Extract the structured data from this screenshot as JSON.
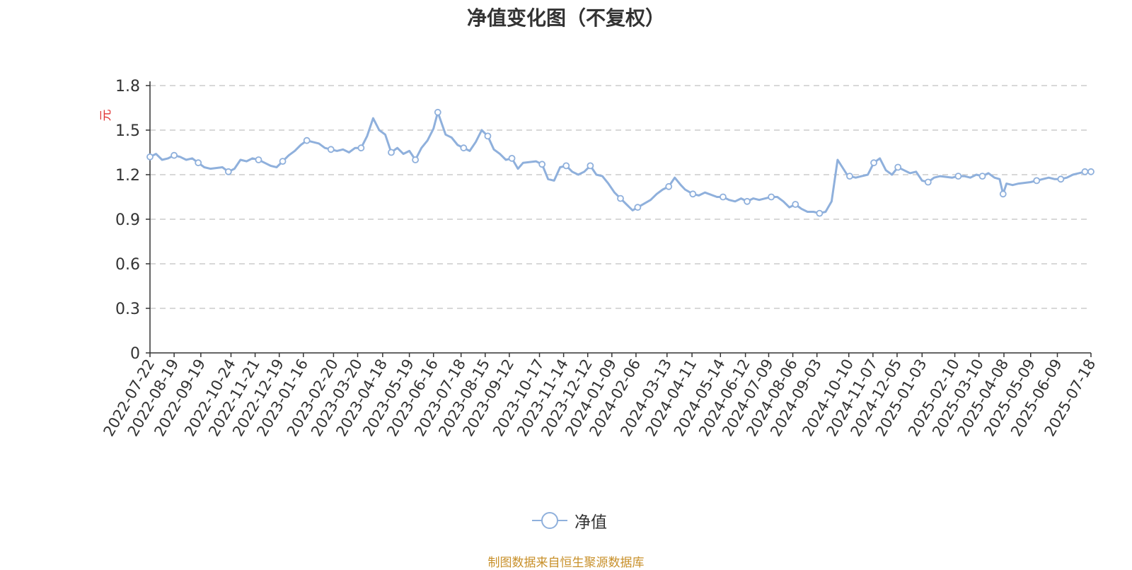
{
  "title": "净值变化图（不复权）",
  "source_note": "制图数据来自恒生聚源数据库",
  "colors": {
    "line": "#8fb0dc",
    "unit": "#e03030",
    "source": "#c8902a",
    "grid": "#cccccc",
    "text": "#333333"
  },
  "chart_data": {
    "type": "line",
    "title": "净值变化图（不复权）",
    "ylabel": "元",
    "ylim": [
      0,
      1.8
    ],
    "yticks": [
      0,
      0.3,
      0.6,
      0.9,
      1.2,
      1.5,
      1.8
    ],
    "grid": true,
    "legend_position": "bottom-center",
    "x_ticks": [
      "2022-07-22",
      "2022-08-19",
      "2022-09-19",
      "2022-10-24",
      "2022-11-21",
      "2022-12-19",
      "2023-01-16",
      "2023-02-20",
      "2023-03-20",
      "2023-04-18",
      "2023-05-19",
      "2023-06-16",
      "2023-07-18",
      "2023-08-15",
      "2023-09-12",
      "2023-10-17",
      "2023-11-14",
      "2023-12-12",
      "2024-01-09",
      "2024-02-06",
      "2024-03-13",
      "2024-04-11",
      "2024-05-14",
      "2024-06-12",
      "2024-07-09",
      "2024-08-06",
      "2024-09-03",
      "2024-10-10",
      "2024-11-07",
      "2024-12-05",
      "2025-01-03",
      "2025-02-10",
      "2025-03-10",
      "2025-04-08",
      "2025-05-09",
      "2025-06-09",
      "2025-07-18"
    ],
    "series": [
      {
        "name": "净值",
        "x": [
          "2022-07-22",
          "2022-07-29",
          "2022-08-05",
          "2022-08-12",
          "2022-08-19",
          "2022-08-26",
          "2022-09-02",
          "2022-09-09",
          "2022-09-16",
          "2022-09-23",
          "2022-09-30",
          "2022-10-14",
          "2022-10-21",
          "2022-10-28",
          "2022-11-04",
          "2022-11-11",
          "2022-11-18",
          "2022-11-25",
          "2022-12-02",
          "2022-12-09",
          "2022-12-16",
          "2022-12-23",
          "2022-12-30",
          "2023-01-06",
          "2023-01-13",
          "2023-01-20",
          "2023-02-03",
          "2023-02-10",
          "2023-02-17",
          "2023-02-24",
          "2023-03-03",
          "2023-03-10",
          "2023-03-17",
          "2023-03-24",
          "2023-03-31",
          "2023-04-07",
          "2023-04-14",
          "2023-04-21",
          "2023-04-28",
          "2023-05-05",
          "2023-05-12",
          "2023-05-19",
          "2023-05-26",
          "2023-06-02",
          "2023-06-09",
          "2023-06-16",
          "2023-06-21",
          "2023-06-30",
          "2023-07-07",
          "2023-07-14",
          "2023-07-21",
          "2023-07-28",
          "2023-08-04",
          "2023-08-11",
          "2023-08-18",
          "2023-08-25",
          "2023-09-01",
          "2023-09-08",
          "2023-09-15",
          "2023-09-22",
          "2023-09-28",
          "2023-10-13",
          "2023-10-20",
          "2023-10-27",
          "2023-11-03",
          "2023-11-10",
          "2023-11-17",
          "2023-11-24",
          "2023-12-01",
          "2023-12-08",
          "2023-12-15",
          "2023-12-22",
          "2023-12-29",
          "2024-01-05",
          "2024-01-12",
          "2024-01-19",
          "2024-01-26",
          "2024-02-02",
          "2024-02-08",
          "2024-02-23",
          "2024-03-01",
          "2024-03-08",
          "2024-03-15",
          "2024-03-22",
          "2024-03-29",
          "2024-04-03",
          "2024-04-12",
          "2024-04-19",
          "2024-04-26",
          "2024-05-10",
          "2024-05-17",
          "2024-05-24",
          "2024-05-31",
          "2024-06-07",
          "2024-06-14",
          "2024-06-21",
          "2024-06-28",
          "2024-07-05",
          "2024-07-12",
          "2024-07-19",
          "2024-07-26",
          "2024-08-02",
          "2024-08-09",
          "2024-08-16",
          "2024-08-23",
          "2024-08-30",
          "2024-09-06",
          "2024-09-13",
          "2024-09-20",
          "2024-09-27",
          "2024-10-08",
          "2024-10-11",
          "2024-10-18",
          "2024-10-25",
          "2024-11-01",
          "2024-11-08",
          "2024-11-15",
          "2024-11-22",
          "2024-11-29",
          "2024-12-06",
          "2024-12-13",
          "2024-12-20",
          "2024-12-27",
          "2025-01-03",
          "2025-01-10",
          "2025-01-17",
          "2025-01-24",
          "2025-02-07",
          "2025-02-14",
          "2025-02-21",
          "2025-02-28",
          "2025-03-07",
          "2025-03-14",
          "2025-03-21",
          "2025-03-28",
          "2025-04-03",
          "2025-04-07",
          "2025-04-11",
          "2025-04-18",
          "2025-04-25",
          "2025-05-09",
          "2025-05-16",
          "2025-05-23",
          "2025-05-30",
          "2025-06-06",
          "2025-06-13",
          "2025-06-20",
          "2025-06-27",
          "2025-07-04",
          "2025-07-11",
          "2025-07-18"
        ],
        "values": [
          1.32,
          1.34,
          1.3,
          1.31,
          1.33,
          1.32,
          1.3,
          1.31,
          1.28,
          1.25,
          1.24,
          1.25,
          1.22,
          1.24,
          1.3,
          1.29,
          1.31,
          1.3,
          1.28,
          1.26,
          1.25,
          1.29,
          1.33,
          1.36,
          1.4,
          1.43,
          1.41,
          1.38,
          1.37,
          1.36,
          1.37,
          1.35,
          1.38,
          1.38,
          1.46,
          1.58,
          1.5,
          1.47,
          1.35,
          1.38,
          1.34,
          1.36,
          1.3,
          1.38,
          1.43,
          1.51,
          1.62,
          1.47,
          1.45,
          1.4,
          1.38,
          1.36,
          1.42,
          1.5,
          1.46,
          1.37,
          1.34,
          1.3,
          1.31,
          1.24,
          1.28,
          1.29,
          1.27,
          1.17,
          1.16,
          1.25,
          1.26,
          1.22,
          1.2,
          1.22,
          1.26,
          1.2,
          1.19,
          1.14,
          1.08,
          1.04,
          1.0,
          0.96,
          0.98,
          1.03,
          1.07,
          1.1,
          1.12,
          1.18,
          1.13,
          1.1,
          1.07,
          1.06,
          1.08,
          1.05,
          1.05,
          1.03,
          1.02,
          1.04,
          1.02,
          1.04,
          1.03,
          1.04,
          1.05,
          1.05,
          1.02,
          0.98,
          1.0,
          0.97,
          0.95,
          0.95,
          0.94,
          0.95,
          1.02,
          1.3,
          1.2,
          1.19,
          1.18,
          1.19,
          1.2,
          1.28,
          1.31,
          1.23,
          1.2,
          1.25,
          1.23,
          1.21,
          1.22,
          1.16,
          1.15,
          1.18,
          1.19,
          1.18,
          1.19,
          1.19,
          1.18,
          1.2,
          1.19,
          1.21,
          1.18,
          1.17,
          1.07,
          1.14,
          1.13,
          1.14,
          1.15,
          1.16,
          1.17,
          1.18,
          1.17,
          1.17,
          1.18,
          1.2,
          1.21,
          1.22,
          1.22
        ],
        "markers": [
          "2022-07-22",
          "2022-08-19",
          "2022-09-16",
          "2022-10-21",
          "2022-11-25",
          "2022-12-23",
          "2023-01-20",
          "2023-02-17",
          "2023-03-24",
          "2023-04-28",
          "2023-05-26",
          "2023-06-21",
          "2023-07-21",
          "2023-08-18",
          "2023-09-15",
          "2023-10-20",
          "2023-11-17",
          "2023-12-15",
          "2024-01-19",
          "2024-02-08",
          "2024-03-15",
          "2024-04-12",
          "2024-05-17",
          "2024-06-14",
          "2024-07-12",
          "2024-08-09",
          "2024-09-06",
          "2024-10-11",
          "2024-11-08",
          "2024-12-06",
          "2025-01-10",
          "2025-02-14",
          "2025-03-14",
          "2025-04-07",
          "2025-05-16",
          "2025-06-13",
          "2025-07-11",
          "2025-07-18"
        ]
      }
    ]
  }
}
